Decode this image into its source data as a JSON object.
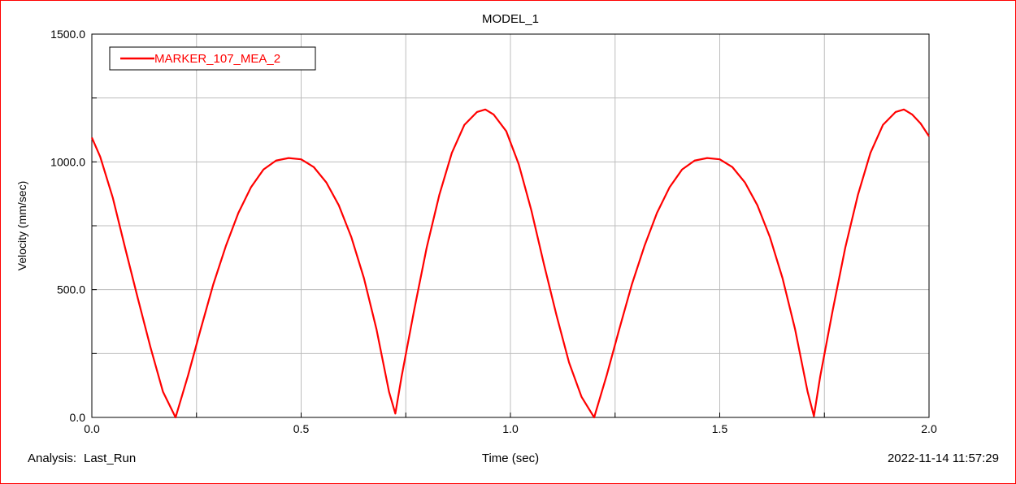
{
  "chart_data": {
    "type": "line",
    "title": "MODEL_1",
    "xlabel": "Time (sec)",
    "ylabel": "Velocity (mm/sec)",
    "xlim": [
      0.0,
      2.0
    ],
    "ylim": [
      0.0,
      1500.0
    ],
    "x_ticks": [
      0.0,
      0.5,
      1.0,
      1.5,
      2.0
    ],
    "x_tick_labels": [
      "0.0",
      "0.5",
      "1.0",
      "1.5",
      "2.0"
    ],
    "y_ticks": [
      0.0,
      500.0,
      1000.0,
      1500.0
    ],
    "y_tick_labels": [
      "0.0",
      "500.0",
      "1000.0",
      "1500.0"
    ],
    "x_gridlines": [
      0.0,
      0.25,
      0.5,
      0.75,
      1.0,
      1.25,
      1.5,
      1.75,
      2.0
    ],
    "y_gridlines": [
      0.0,
      250.0,
      500.0,
      750.0,
      1000.0,
      1250.0,
      1500.0
    ],
    "grid": true,
    "legend_position": "top-left",
    "series": [
      {
        "name": "MARKER_107_MEA_2",
        "color": "#ff0000",
        "x": [
          0.0,
          0.02,
          0.05,
          0.08,
          0.11,
          0.14,
          0.17,
          0.2,
          0.23,
          0.26,
          0.29,
          0.32,
          0.35,
          0.38,
          0.41,
          0.44,
          0.47,
          0.5,
          0.53,
          0.56,
          0.59,
          0.62,
          0.65,
          0.68,
          0.71,
          0.725,
          0.74,
          0.77,
          0.8,
          0.83,
          0.86,
          0.89,
          0.92,
          0.94,
          0.96,
          0.99,
          1.02,
          1.05,
          1.08,
          1.11,
          1.14,
          1.17,
          1.2,
          1.23,
          1.26,
          1.29,
          1.32,
          1.35,
          1.38,
          1.41,
          1.44,
          1.47,
          1.5,
          1.53,
          1.56,
          1.59,
          1.62,
          1.65,
          1.68,
          1.71,
          1.725,
          1.74,
          1.77,
          1.8,
          1.83,
          1.86,
          1.89,
          1.92,
          1.94,
          1.96,
          1.98,
          2.0
        ],
        "y": [
          1095,
          1020,
          860,
          660,
          465,
          275,
          100,
          0,
          165,
          345,
          520,
          670,
          800,
          900,
          970,
          1005,
          1015,
          1010,
          980,
          920,
          830,
          705,
          545,
          345,
          100,
          15,
          160,
          420,
          665,
          870,
          1035,
          1145,
          1195,
          1205,
          1185,
          1120,
          990,
          810,
          600,
          400,
          215,
          80,
          0,
          165,
          345,
          520,
          670,
          800,
          900,
          970,
          1005,
          1015,
          1010,
          980,
          920,
          830,
          705,
          545,
          345,
          100,
          5,
          160,
          420,
          665,
          870,
          1035,
          1145,
          1195,
          1205,
          1185,
          1150,
          1100
        ]
      }
    ]
  },
  "footer": {
    "analysis_label": "Analysis:",
    "analysis_value": "Last_Run",
    "timestamp": "2022-11-14 11:57:29"
  }
}
